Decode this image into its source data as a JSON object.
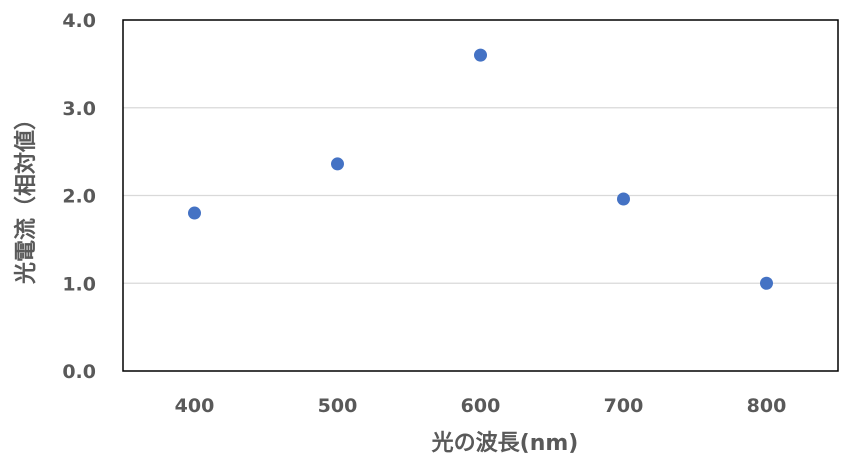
{
  "chart_data": {
    "type": "scatter",
    "xlabel": "光の波長(nm)",
    "ylabel": "光電流（相対値）",
    "xlim": [
      350,
      850
    ],
    "ylim": [
      0,
      4
    ],
    "x_ticks": [
      400,
      500,
      600,
      700,
      800
    ],
    "x_tick_labels": [
      "400",
      "500",
      "600",
      "700",
      "800"
    ],
    "y_ticks": [
      0,
      1,
      2,
      3,
      4
    ],
    "y_tick_labels": [
      "0.0",
      "1.0",
      "2.0",
      "3.0",
      "4.0"
    ],
    "grid": true,
    "series": [
      {
        "x": [
          400,
          500,
          600,
          700,
          800
        ],
        "y": [
          1.8,
          2.36,
          3.6,
          1.96,
          1.0
        ]
      }
    ],
    "colors": {
      "marker": "#4472C4",
      "grid": "#d9d9d9",
      "frame": "#000000"
    }
  }
}
